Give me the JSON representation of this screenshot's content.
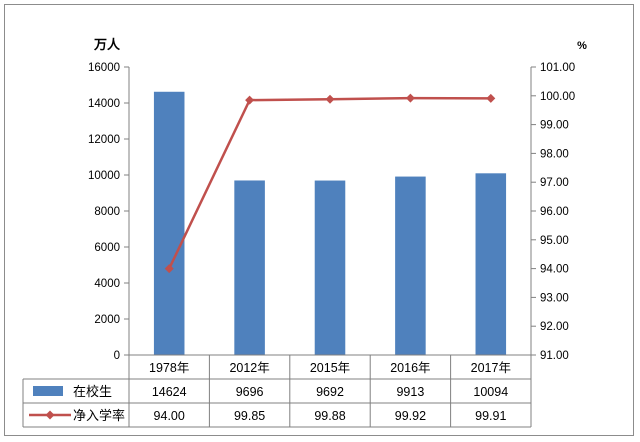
{
  "chart_data": {
    "type": "bar+line",
    "categories": [
      "1978年",
      "2012年",
      "2015年",
      "2016年",
      "2017年"
    ],
    "left_axis_unit": "万人",
    "right_axis_unit": "%",
    "left_ylim": [
      0,
      16000
    ],
    "left_ticks": [
      "0",
      "2000",
      "4000",
      "6000",
      "8000",
      "10000",
      "12000",
      "14000",
      "16000"
    ],
    "right_ylim": [
      91.0,
      101.0
    ],
    "right_ticks": [
      "91.00",
      "92.00",
      "93.00",
      "94.00",
      "95.00",
      "96.00",
      "97.00",
      "98.00",
      "99.00",
      "100.00",
      "101.00"
    ],
    "series": [
      {
        "name": "在校生",
        "type": "bar",
        "axis": "left",
        "color": "#4f81bd",
        "values": [
          14624,
          9696,
          9692,
          9913,
          10094
        ],
        "table_labels": [
          "14624",
          "9696",
          "9692",
          "9913",
          "10094"
        ]
      },
      {
        "name": "净入学率",
        "type": "line",
        "axis": "right",
        "color": "#c0504d",
        "values": [
          94.0,
          99.85,
          99.88,
          99.92,
          99.91
        ],
        "table_labels": [
          "94.00",
          "99.85",
          "99.88",
          "99.92",
          "99.91"
        ]
      }
    ],
    "grid": false,
    "legend": "data-table"
  }
}
